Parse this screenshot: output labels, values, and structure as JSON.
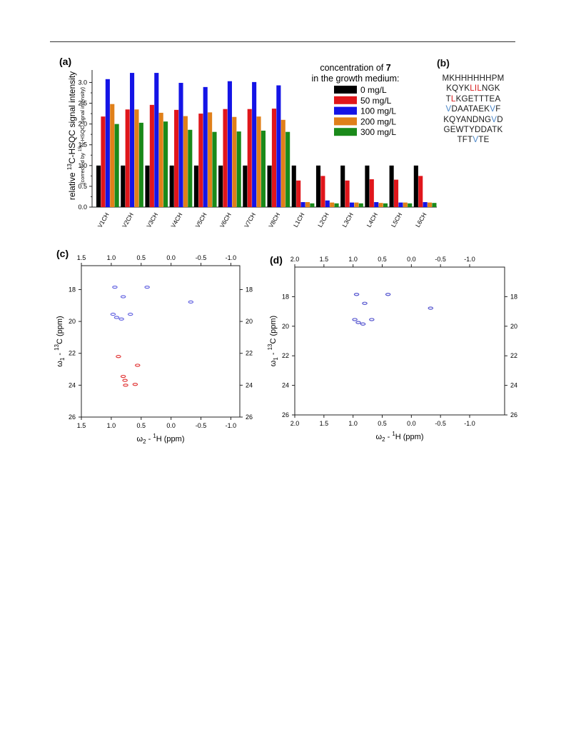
{
  "panel_a": {
    "label": "(a)",
    "chart_data": {
      "type": "bar",
      "ylabel_main": "relative ",
      "ylabel_sup": "13",
      "ylabel_rest": "C-HSQC signal intensity",
      "ylabel_sub_pre": "(corrected by ",
      "ylabel_sub_sup": "15",
      "ylabel_sub_rest": "N-HSQC signal intensity)",
      "ylim": [
        0,
        3.3
      ],
      "yticks": [
        "0.0",
        "0.5",
        "1.0",
        "1.5",
        "2.0",
        "2.5",
        "3.0"
      ],
      "categories": [
        "V1CH",
        "V2CH",
        "V3CH",
        "V4CH",
        "V5CH",
        "V6CH",
        "V7CH",
        "V8CH",
        "L1CH",
        "L2CH",
        "L3CH",
        "L4CH",
        "L5CH",
        "L6CH"
      ],
      "series": [
        {
          "name": "0 mg/L",
          "color": "#000000",
          "values": [
            1.0,
            1.0,
            1.0,
            1.0,
            1.0,
            1.0,
            1.0,
            1.0,
            1.0,
            1.0,
            1.0,
            1.0,
            1.0,
            1.0
          ]
        },
        {
          "name": "50 mg/L",
          "color": "#e0161b",
          "values": [
            2.18,
            2.35,
            2.46,
            2.34,
            2.25,
            2.36,
            2.36,
            2.37,
            0.64,
            0.75,
            0.64,
            0.67,
            0.66,
            0.75
          ]
        },
        {
          "name": "100 mg/L",
          "color": "#1414e6",
          "values": [
            3.08,
            3.23,
            3.23,
            2.99,
            2.89,
            3.03,
            3.01,
            2.93,
            0.12,
            0.16,
            0.11,
            0.12,
            0.11,
            0.12
          ]
        },
        {
          "name": "200 mg/L",
          "color": "#e0801a",
          "values": [
            2.48,
            2.35,
            2.27,
            2.19,
            2.28,
            2.17,
            2.18,
            2.1,
            0.12,
            0.11,
            0.11,
            0.1,
            0.11,
            0.11
          ]
        },
        {
          "name": "300 mg/L",
          "color": "#1a8a1a",
          "values": [
            2.0,
            2.03,
            2.06,
            1.86,
            1.81,
            1.82,
            1.84,
            1.81,
            0.09,
            0.09,
            0.09,
            0.09,
            0.09,
            0.1
          ]
        }
      ],
      "legend": {
        "title_line1_pre": "concentration of ",
        "title_line1_bold": "7",
        "title_line2": "in the growth medium:",
        "placement": "top-right"
      }
    }
  },
  "panel_b": {
    "label": "(b)",
    "sequence_lines": [
      [
        {
          "t": "MKHHHHHHPM",
          "c": "normal"
        }
      ],
      [
        {
          "t": "KQYK",
          "c": "normal"
        },
        {
          "t": "LIL",
          "c": "red"
        },
        {
          "t": "NGK",
          "c": "normal"
        }
      ],
      [
        {
          "t": "T",
          "c": "normal"
        },
        {
          "t": "L",
          "c": "red"
        },
        {
          "t": "KGETTTEA",
          "c": "normal"
        }
      ],
      [
        {
          "t": "V",
          "c": "blue"
        },
        {
          "t": "DAATAEK",
          "c": "normal"
        },
        {
          "t": "V",
          "c": "blue"
        },
        {
          "t": "F",
          "c": "normal"
        }
      ],
      [
        {
          "t": "KQYANDNG",
          "c": "normal"
        },
        {
          "t": "V",
          "c": "blue"
        },
        {
          "t": "D",
          "c": "normal"
        }
      ],
      [
        {
          "t": "GEWTYDDATK",
          "c": "normal"
        }
      ],
      [
        {
          "t": "TFT",
          "c": "normal"
        },
        {
          "t": "V",
          "c": "blue"
        },
        {
          "t": "TE",
          "c": "normal"
        }
      ]
    ]
  },
  "panel_c": {
    "label": "(c)",
    "chart_data": {
      "type": "scatter",
      "xlabel_pre": "ω",
      "xlabel_sub": "2",
      "xlabel_mid": " - ",
      "xlabel_sup": "1",
      "xlabel_rest": "H  (ppm)",
      "ylabel_pre": "ω",
      "ylabel_sub": "1",
      "ylabel_mid": " - ",
      "ylabel_sup": "13",
      "ylabel_rest": "C  (ppm)",
      "xlim": [
        1.5,
        -1.15
      ],
      "ylim": [
        16.5,
        26
      ],
      "xticks": [
        "1.5",
        "1.0",
        "0.5",
        "0.0",
        "-0.5",
        "-1.0"
      ],
      "yticks": [
        "18",
        "20",
        "22",
        "24",
        "26"
      ],
      "series": [
        {
          "name": "",
          "color": "#5d5de0",
          "points": [
            [
              0.94,
              17.85
            ],
            [
              0.4,
              17.85
            ],
            [
              0.8,
              18.45
            ],
            [
              -0.33,
              18.78
            ],
            [
              0.97,
              19.55
            ],
            [
              0.68,
              19.55
            ],
            [
              0.91,
              19.75
            ],
            [
              0.83,
              19.85
            ]
          ]
        },
        {
          "name": "",
          "color": "#e03030",
          "points": [
            [
              0.88,
              22.2
            ],
            [
              0.56,
              22.75
            ],
            [
              0.8,
              23.45
            ],
            [
              0.77,
              23.7
            ],
            [
              0.76,
              24.0
            ],
            [
              0.6,
              23.95
            ]
          ]
        }
      ]
    }
  },
  "panel_d": {
    "label": "(d)",
    "chart_data": {
      "type": "scatter",
      "xlabel_pre": "ω",
      "xlabel_sub": "2",
      "xlabel_mid": " - ",
      "xlabel_sup": "1",
      "xlabel_rest": "H  (ppm)",
      "ylabel_pre": "ω",
      "ylabel_sub": "1",
      "ylabel_mid": " - ",
      "ylabel_sup": "13",
      "ylabel_rest": "C  (ppm)",
      "xlim": [
        2.0,
        -1.6
      ],
      "ylim": [
        16.0,
        26
      ],
      "xticks": [
        "2.0",
        "1.5",
        "1.0",
        "0.5",
        "0.0",
        "-0.5",
        "-1.0"
      ],
      "yticks": [
        "18",
        "20",
        "22",
        "24",
        "26"
      ],
      "series": [
        {
          "name": "",
          "color": "#4a4acc",
          "points": [
            [
              0.94,
              17.85
            ],
            [
              0.4,
              17.85
            ],
            [
              0.8,
              18.45
            ],
            [
              -0.33,
              18.78
            ],
            [
              0.97,
              19.55
            ],
            [
              0.68,
              19.55
            ],
            [
              0.91,
              19.75
            ],
            [
              0.83,
              19.85
            ]
          ]
        }
      ]
    }
  }
}
